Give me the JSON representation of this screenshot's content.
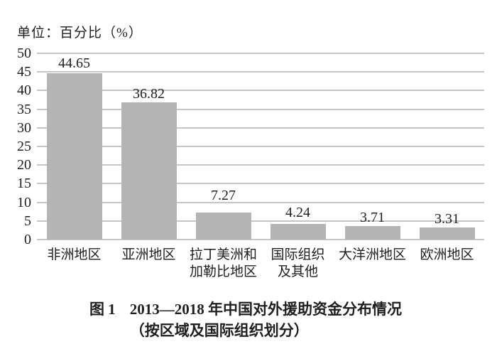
{
  "unit_label": "单位：百分比（%）",
  "chart_data": {
    "type": "bar",
    "title": "图 1 2013—2018 年中国对外援助资金分布情况（按区域及国际组织划分）",
    "unit_label": "单位：百分比（%）",
    "categories": [
      "非洲地区",
      "亚洲地区",
      "拉丁美洲和加勒比地区",
      "国际组织及其他",
      "大洋洲地区",
      "欧洲地区"
    ],
    "category_lines": [
      [
        "非洲地区"
      ],
      [
        "亚洲地区"
      ],
      [
        "拉丁美洲和",
        "加勒比地区"
      ],
      [
        "国际组织",
        "及其他"
      ],
      [
        "大洋洲地区"
      ],
      [
        "欧洲地区"
      ]
    ],
    "values": [
      44.65,
      36.82,
      7.27,
      4.24,
      3.71,
      3.31
    ],
    "value_labels": [
      "44.65",
      "36.82",
      "7.27",
      "4.24",
      "3.71",
      "3.31"
    ],
    "xlabel": "",
    "ylabel": "单位：百分比（%）",
    "ylim": [
      0,
      50
    ],
    "yticks": [
      0,
      5,
      10,
      15,
      20,
      25,
      30,
      35,
      40,
      45,
      50
    ],
    "grid": true,
    "legend_position": "none",
    "colors": {
      "bar": "#b4b4b4",
      "gridline": "#c6c6c6",
      "text": "#1f1f1f",
      "background": "#ffffff"
    }
  },
  "caption": {
    "fig_label": "图 1",
    "line1": "2013—2018 年中国对外援助资金分布情况",
    "line2": "（按区域及国际组织划分）"
  }
}
